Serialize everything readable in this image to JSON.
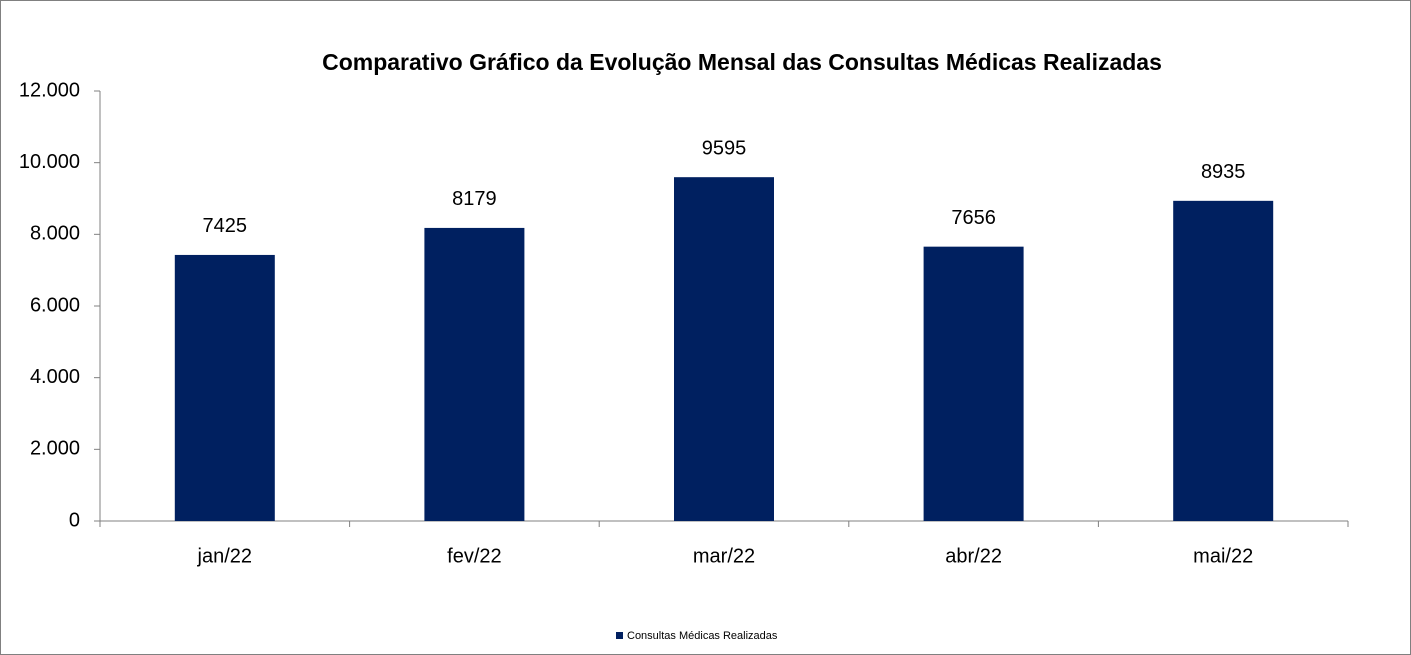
{
  "chart_data": {
    "type": "bar",
    "title": "Comparativo Gráfico da Evolução Mensal das Consultas Médicas Realizadas",
    "categories": [
      "jan/22",
      "fev/22",
      "mar/22",
      "abr/22",
      "mai/22"
    ],
    "series": [
      {
        "name": "Consultas Médicas Realizadas",
        "color": "#002060",
        "values": [
          7425,
          8179,
          9595,
          7656,
          8935
        ]
      }
    ],
    "ylim": [
      0,
      12000
    ],
    "yticks": [
      0,
      {
        "value": 2000,
        "label": "2.000"
      },
      {
        "value": 4000,
        "label": "4.000"
      },
      {
        "value": 6000,
        "label": "6.000"
      },
      {
        "value": 8000,
        "label": "8.000"
      },
      {
        "value": 10000,
        "label": "10.000"
      },
      {
        "value": 12000,
        "label": "12.000"
      }
    ],
    "grid": false,
    "legend": "bottom"
  }
}
